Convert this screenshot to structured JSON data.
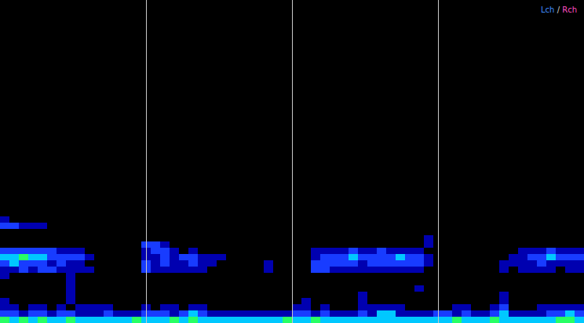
{
  "chart_data": {
    "type": "heatmap",
    "xlim": [
      0,
      4
    ],
    "xticks": [
      1,
      2,
      3
    ],
    "ylim": [
      0,
      51.5
    ],
    "grid": true,
    "tick_labels": false,
    "zlim": [
      0,
      4
    ],
    "legend": "top-right",
    "channels": [
      {
        "name": "Lch",
        "color": "#3f8cff"
      },
      {
        "name": "Rch",
        "color": "#ff4fc3"
      }
    ],
    "channel_separator": "/",
    "cells": [
      [
        4,
        3,
        4,
        3,
        4,
        3,
        3,
        4,
        3,
        3,
        3,
        3,
        3,
        3,
        4,
        3,
        3,
        3,
        4,
        3,
        4,
        3,
        3,
        3,
        3,
        3,
        3,
        3,
        3,
        3,
        4,
        3,
        3,
        4,
        3,
        3,
        3,
        3,
        3,
        3,
        3,
        3,
        3,
        3,
        3,
        3,
        3,
        3,
        4,
        3,
        3,
        3,
        4,
        3,
        3,
        3,
        3,
        3,
        3,
        4,
        4,
        3
      ],
      [
        2,
        2,
        1,
        2,
        2,
        1,
        2,
        2,
        1,
        1,
        1,
        2,
        1,
        1,
        1,
        2,
        2,
        2,
        1,
        2,
        3,
        2,
        1,
        1,
        1,
        1,
        1,
        1,
        1,
        1,
        1,
        2,
        2,
        1,
        2,
        1,
        1,
        1,
        2,
        1,
        3,
        3,
        1,
        1,
        1,
        1,
        2,
        2,
        1,
        2,
        1,
        1,
        2,
        3,
        1,
        1,
        1,
        1,
        2,
        2,
        3,
        2
      ],
      [
        1,
        1,
        0,
        1,
        1,
        0,
        1,
        0,
        1,
        1,
        1,
        1,
        0,
        0,
        0,
        1,
        0,
        1,
        1,
        0,
        1,
        1,
        0,
        0,
        0,
        0,
        0,
        0,
        0,
        0,
        0,
        1,
        1,
        0,
        1,
        0,
        0,
        0,
        1,
        1,
        1,
        1,
        1,
        0,
        0,
        0,
        0,
        0,
        1,
        1,
        0,
        0,
        1,
        2,
        0,
        0,
        0,
        1,
        1,
        1,
        1,
        1
      ],
      [
        1,
        0,
        0,
        0,
        0,
        0,
        0,
        1,
        0,
        0,
        0,
        0,
        0,
        0,
        0,
        0,
        0,
        0,
        0,
        0,
        0,
        0,
        0,
        0,
        0,
        0,
        0,
        0,
        0,
        0,
        0,
        0,
        1,
        0,
        0,
        0,
        0,
        0,
        1,
        0,
        0,
        0,
        0,
        0,
        0,
        0,
        0,
        0,
        0,
        0,
        0,
        0,
        0,
        1,
        0,
        0,
        0,
        0,
        0,
        0,
        0,
        0
      ],
      [
        0,
        0,
        0,
        0,
        0,
        0,
        0,
        1,
        0,
        0,
        0,
        0,
        0,
        0,
        0,
        0,
        0,
        0,
        0,
        0,
        0,
        0,
        0,
        0,
        0,
        0,
        0,
        0,
        0,
        0,
        0,
        0,
        0,
        0,
        0,
        0,
        0,
        0,
        1,
        0,
        0,
        0,
        0,
        0,
        0,
        0,
        0,
        0,
        0,
        0,
        0,
        0,
        0,
        1,
        0,
        0,
        0,
        0,
        0,
        0,
        0,
        0
      ],
      [
        0,
        0,
        0,
        0,
        0,
        0,
        0,
        1,
        0,
        0,
        0,
        0,
        0,
        0,
        0,
        0,
        0,
        0,
        0,
        0,
        0,
        0,
        0,
        0,
        0,
        0,
        0,
        0,
        0,
        0,
        0,
        0,
        0,
        0,
        0,
        0,
        0,
        0,
        0,
        0,
        0,
        0,
        0,
        0,
        1,
        0,
        0,
        0,
        0,
        0,
        0,
        0,
        0,
        0,
        0,
        0,
        0,
        0,
        0,
        0,
        0,
        0
      ],
      [
        0,
        0,
        0,
        0,
        0,
        0,
        0,
        1,
        0,
        0,
        0,
        0,
        0,
        0,
        0,
        0,
        0,
        0,
        0,
        0,
        0,
        0,
        0,
        0,
        0,
        0,
        0,
        0,
        0,
        0,
        0,
        0,
        0,
        0,
        0,
        0,
        0,
        0,
        0,
        0,
        0,
        0,
        0,
        0,
        0,
        0,
        0,
        0,
        0,
        0,
        0,
        0,
        0,
        0,
        0,
        0,
        0,
        0,
        0,
        0,
        0,
        0
      ],
      [
        1,
        0,
        0,
        0,
        0,
        0,
        0,
        1,
        0,
        0,
        0,
        0,
        0,
        0,
        0,
        0,
        0,
        0,
        0,
        0,
        0,
        0,
        0,
        0,
        0,
        0,
        0,
        0,
        0,
        0,
        0,
        0,
        0,
        0,
        0,
        0,
        0,
        0,
        0,
        0,
        0,
        0,
        0,
        0,
        0,
        0,
        0,
        0,
        0,
        0,
        0,
        0,
        0,
        0,
        0,
        0,
        0,
        0,
        0,
        0,
        0,
        0
      ],
      [
        1,
        1,
        2,
        1,
        2,
        2,
        1,
        1,
        1,
        1,
        0,
        0,
        0,
        0,
        0,
        2,
        1,
        1,
        1,
        1,
        1,
        1,
        0,
        0,
        0,
        0,
        0,
        0,
        1,
        0,
        0,
        0,
        0,
        2,
        2,
        1,
        1,
        1,
        1,
        1,
        1,
        1,
        1,
        1,
        1,
        0,
        0,
        0,
        0,
        0,
        0,
        0,
        0,
        1,
        0,
        1,
        1,
        1,
        1,
        0,
        1,
        1
      ],
      [
        2,
        3,
        2,
        2,
        2,
        1,
        2,
        1,
        1,
        0,
        0,
        0,
        0,
        0,
        0,
        2,
        1,
        2,
        1,
        1,
        2,
        1,
        1,
        0,
        0,
        0,
        0,
        0,
        1,
        0,
        0,
        0,
        0,
        2,
        2,
        2,
        2,
        2,
        1,
        2,
        2,
        2,
        2,
        2,
        2,
        1,
        0,
        0,
        0,
        0,
        0,
        0,
        0,
        1,
        1,
        1,
        1,
        2,
        1,
        1,
        1,
        1
      ],
      [
        3,
        3,
        4,
        3,
        3,
        2,
        2,
        2,
        2,
        1,
        0,
        0,
        0,
        0,
        0,
        1,
        1,
        2,
        1,
        2,
        2,
        1,
        1,
        1,
        0,
        0,
        0,
        0,
        0,
        0,
        0,
        0,
        0,
        1,
        2,
        2,
        2,
        3,
        2,
        2,
        2,
        2,
        3,
        2,
        2,
        1,
        0,
        0,
        0,
        0,
        0,
        0,
        0,
        0,
        1,
        1,
        2,
        2,
        3,
        2,
        2,
        2
      ],
      [
        2,
        2,
        2,
        2,
        2,
        2,
        1,
        1,
        1,
        0,
        0,
        0,
        0,
        0,
        0,
        1,
        2,
        2,
        1,
        0,
        1,
        0,
        0,
        0,
        0,
        0,
        0,
        0,
        0,
        0,
        0,
        0,
        0,
        1,
        1,
        1,
        1,
        2,
        1,
        1,
        2,
        1,
        1,
        1,
        1,
        0,
        0,
        0,
        0,
        0,
        0,
        0,
        0,
        0,
        0,
        1,
        1,
        1,
        2,
        1,
        1,
        1
      ],
      [
        0,
        0,
        0,
        0,
        0,
        0,
        0,
        0,
        0,
        0,
        0,
        0,
        0,
        0,
        0,
        2,
        2,
        1,
        0,
        0,
        0,
        0,
        0,
        0,
        0,
        0,
        0,
        0,
        0,
        0,
        0,
        0,
        0,
        0,
        0,
        0,
        0,
        0,
        0,
        0,
        0,
        0,
        0,
        0,
        0,
        1,
        0,
        0,
        0,
        0,
        0,
        0,
        0,
        0,
        0,
        0,
        0,
        0,
        0,
        0,
        0,
        0
      ],
      [
        0,
        0,
        0,
        0,
        0,
        0,
        0,
        0,
        0,
        0,
        0,
        0,
        0,
        0,
        0,
        0,
        0,
        0,
        0,
        0,
        0,
        0,
        0,
        0,
        0,
        0,
        0,
        0,
        0,
        0,
        0,
        0,
        0,
        0,
        0,
        0,
        0,
        0,
        0,
        0,
        0,
        0,
        0,
        0,
        0,
        1,
        0,
        0,
        0,
        0,
        0,
        0,
        0,
        0,
        0,
        0,
        0,
        0,
        0,
        0,
        0,
        0
      ],
      [
        0,
        0,
        0,
        0,
        0,
        0,
        0,
        0,
        0,
        0,
        0,
        0,
        0,
        0,
        0,
        0,
        0,
        0,
        0,
        0,
        0,
        0,
        0,
        0,
        0,
        0,
        0,
        0,
        0,
        0,
        0,
        0,
        0,
        0,
        0,
        0,
        0,
        0,
        0,
        0,
        0,
        0,
        0,
        0,
        0,
        0,
        0,
        0,
        0,
        0,
        0,
        0,
        0,
        0,
        0,
        0,
        0,
        0,
        0,
        0,
        0,
        0
      ],
      [
        2,
        2,
        1,
        1,
        1,
        0,
        0,
        0,
        0,
        0,
        0,
        0,
        0,
        0,
        0,
        0,
        0,
        0,
        0,
        0,
        0,
        0,
        0,
        0,
        0,
        0,
        0,
        0,
        0,
        0,
        0,
        0,
        0,
        0,
        0,
        0,
        0,
        0,
        0,
        0,
        0,
        0,
        0,
        0,
        0,
        0,
        0,
        0,
        0,
        0,
        0,
        0,
        0,
        0,
        0,
        0,
        0,
        0,
        0,
        0,
        0,
        0
      ],
      [
        1,
        0,
        0,
        0,
        0,
        0,
        0,
        0,
        0,
        0,
        0,
        0,
        0,
        0,
        0,
        0,
        0,
        0,
        0,
        0,
        0,
        0,
        0,
        0,
        0,
        0,
        0,
        0,
        0,
        0,
        0,
        0,
        0,
        0,
        0,
        0,
        0,
        0,
        0,
        0,
        0,
        0,
        0,
        0,
        0,
        0,
        0,
        0,
        0,
        0,
        0,
        0,
        0,
        0,
        0,
        0,
        0,
        0,
        0,
        0,
        0,
        0
      ]
    ]
  }
}
